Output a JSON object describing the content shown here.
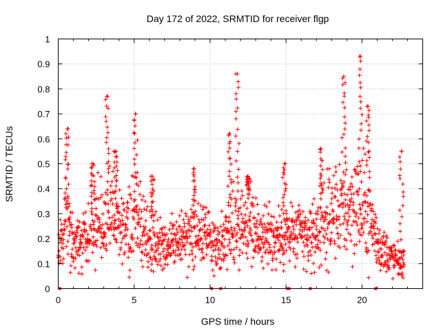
{
  "chart_data": {
    "type": "scatter",
    "title": "Day 172 of 2022, SRMTID for receiver flgp",
    "xlabel": "GPS time / hours",
    "ylabel": "SRMTID / TECUs",
    "xlim": [
      0,
      24
    ],
    "ylim": [
      0,
      1
    ],
    "x_ticks": [
      0,
      5,
      10,
      15,
      20
    ],
    "x_tick_labels": [
      "0",
      "5",
      "10",
      "15",
      "20"
    ],
    "y_ticks": [
      0,
      0.1,
      0.2,
      0.3,
      0.4,
      0.5,
      0.6,
      0.7,
      0.8,
      0.9,
      1
    ],
    "y_tick_labels": [
      "0",
      "0.1",
      "0.2",
      "0.3",
      "0.4",
      "0.5",
      "0.6",
      "0.7",
      "0.8",
      "0.9",
      "1"
    ],
    "grid": true,
    "marker": "plus",
    "color": "#ff0000",
    "x_range_of_data": [
      0,
      22.8
    ],
    "zero_value_points_x": [
      0.1,
      10.1,
      10.7,
      15.1,
      15.2,
      16.6,
      20.9
    ],
    "envelope": [
      {
        "x": 0.0,
        "base": 0.2,
        "spread": 0.14
      },
      {
        "x": 0.6,
        "base": 0.26,
        "spread": 0.2
      },
      {
        "x": 1.0,
        "base": 0.18,
        "spread": 0.12
      },
      {
        "x": 2.0,
        "base": 0.22,
        "spread": 0.14
      },
      {
        "x": 3.0,
        "base": 0.3,
        "spread": 0.22
      },
      {
        "x": 3.5,
        "base": 0.28,
        "spread": 0.2
      },
      {
        "x": 4.5,
        "base": 0.24,
        "spread": 0.16
      },
      {
        "x": 5.0,
        "base": 0.28,
        "spread": 0.2
      },
      {
        "x": 6.0,
        "base": 0.2,
        "spread": 0.14
      },
      {
        "x": 7.0,
        "base": 0.18,
        "spread": 0.12
      },
      {
        "x": 8.5,
        "base": 0.2,
        "spread": 0.14
      },
      {
        "x": 9.5,
        "base": 0.22,
        "spread": 0.14
      },
      {
        "x": 10.5,
        "base": 0.15,
        "spread": 0.1
      },
      {
        "x": 11.5,
        "base": 0.26,
        "spread": 0.2
      },
      {
        "x": 12.5,
        "base": 0.28,
        "spread": 0.18
      },
      {
        "x": 13.5,
        "base": 0.2,
        "spread": 0.14
      },
      {
        "x": 14.5,
        "base": 0.2,
        "spread": 0.14
      },
      {
        "x": 15.5,
        "base": 0.22,
        "spread": 0.16
      },
      {
        "x": 16.5,
        "base": 0.2,
        "spread": 0.14
      },
      {
        "x": 17.5,
        "base": 0.26,
        "spread": 0.18
      },
      {
        "x": 18.5,
        "base": 0.32,
        "spread": 0.22
      },
      {
        "x": 19.5,
        "base": 0.34,
        "spread": 0.24
      },
      {
        "x": 20.5,
        "base": 0.3,
        "spread": 0.22
      },
      {
        "x": 21.0,
        "base": 0.18,
        "spread": 0.12
      },
      {
        "x": 22.0,
        "base": 0.12,
        "spread": 0.08
      },
      {
        "x": 22.8,
        "base": 0.1,
        "spread": 0.06
      }
    ],
    "spikes": [
      {
        "x": 0.6,
        "peak": 0.64
      },
      {
        "x": 2.3,
        "peak": 0.5
      },
      {
        "x": 3.2,
        "peak": 0.77
      },
      {
        "x": 3.8,
        "peak": 0.55
      },
      {
        "x": 5.1,
        "peak": 0.7
      },
      {
        "x": 6.2,
        "peak": 0.45
      },
      {
        "x": 8.9,
        "peak": 0.48
      },
      {
        "x": 11.3,
        "peak": 0.62
      },
      {
        "x": 11.8,
        "peak": 0.86
      },
      {
        "x": 12.5,
        "peak": 0.45
      },
      {
        "x": 14.9,
        "peak": 0.5
      },
      {
        "x": 17.3,
        "peak": 0.56
      },
      {
        "x": 18.8,
        "peak": 0.85
      },
      {
        "x": 19.9,
        "peak": 0.93
      },
      {
        "x": 20.4,
        "peak": 0.73
      },
      {
        "x": 22.6,
        "peak": 0.55
      }
    ]
  }
}
